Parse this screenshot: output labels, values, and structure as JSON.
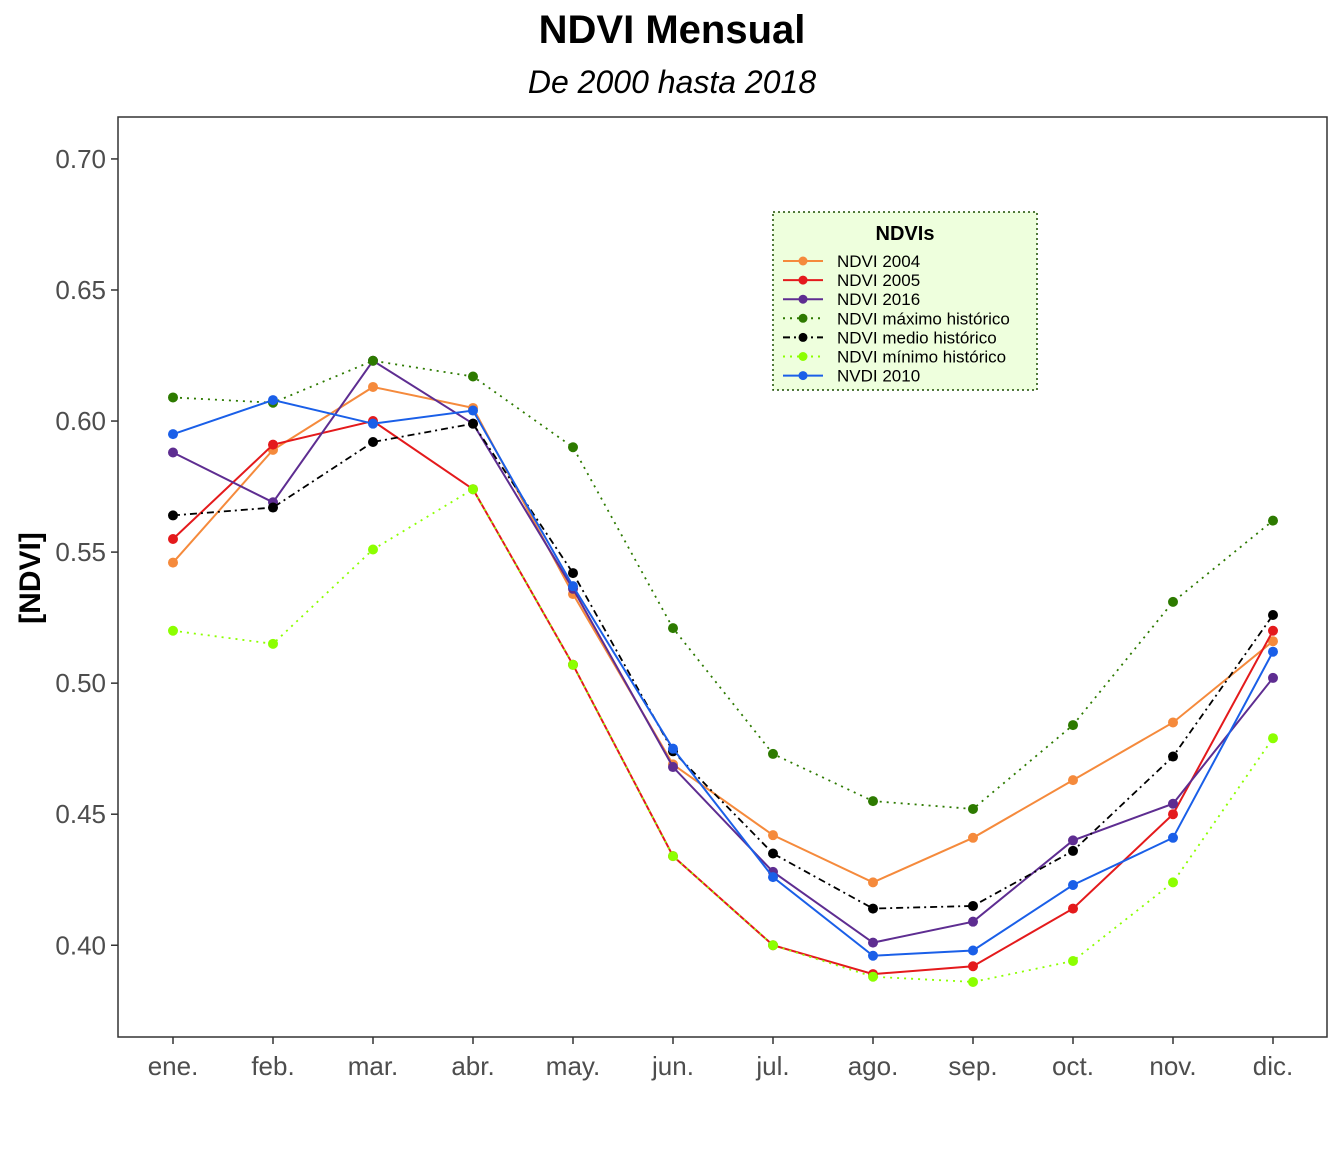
{
  "chart_data": {
    "type": "line",
    "title": "NDVI Mensual",
    "subtitle": "De 2000 hasta 2018",
    "xlabel": "",
    "ylabel": "[NDVI]",
    "categories": [
      "ene.",
      "feb.",
      "mar.",
      "abr.",
      "may.",
      "jun.",
      "jul.",
      "ago.",
      "sep.",
      "oct.",
      "nov.",
      "dic."
    ],
    "ylim": [
      0.365,
      0.716
    ],
    "yticks": [
      0.4,
      0.45,
      0.5,
      0.55,
      0.6,
      0.65,
      0.7
    ],
    "ytick_labels": [
      "0.40",
      "0.45",
      "0.50",
      "0.55",
      "0.60",
      "0.65",
      "0.70"
    ],
    "grid": false,
    "legend": {
      "title": "NDVIs",
      "position": "top-right",
      "background": "#eeffdd"
    },
    "series": [
      {
        "name": "NDVI 2004",
        "color": "#f58a3c",
        "dash": "solid",
        "values": [
          0.546,
          0.589,
          0.613,
          0.605,
          0.534,
          0.469,
          0.442,
          0.424,
          0.441,
          0.463,
          0.485,
          0.516
        ]
      },
      {
        "name": "NDVI 2005",
        "color": "#e41a1c",
        "dash": "solid",
        "values": [
          0.555,
          0.591,
          0.6,
          0.574,
          0.507,
          0.434,
          0.4,
          0.389,
          0.392,
          0.414,
          0.45,
          0.52
        ]
      },
      {
        "name": "NDVI 2016",
        "color": "#5e2d91",
        "dash": "solid",
        "values": [
          0.588,
          0.569,
          0.623,
          0.599,
          0.536,
          0.468,
          0.428,
          0.401,
          0.409,
          0.44,
          0.454,
          0.502
        ]
      },
      {
        "name": "NDVI máximo histórico",
        "color": "#2d7a00",
        "dash": "dotted",
        "values": [
          0.609,
          0.607,
          0.623,
          0.617,
          0.59,
          0.521,
          0.473,
          0.455,
          0.452,
          0.484,
          0.531,
          0.562
        ]
      },
      {
        "name": "NDVI medio histórico",
        "color": "#000000",
        "dash": "dashdot",
        "values": [
          0.564,
          0.567,
          0.592,
          0.599,
          0.542,
          0.474,
          0.435,
          0.414,
          0.415,
          0.436,
          0.472,
          0.526
        ]
      },
      {
        "name": "NDVI mínimo histórico",
        "color": "#8cff00",
        "dash": "dotted",
        "values": [
          0.52,
          0.515,
          0.551,
          0.574,
          0.507,
          0.434,
          0.4,
          0.388,
          0.386,
          0.394,
          0.424,
          0.479
        ]
      },
      {
        "name": "NVDI 2010",
        "color": "#1a5fe8",
        "dash": "solid",
        "values": [
          0.595,
          0.608,
          0.599,
          0.604,
          0.537,
          0.475,
          0.426,
          0.396,
          0.398,
          0.423,
          0.441,
          0.512
        ]
      }
    ]
  }
}
